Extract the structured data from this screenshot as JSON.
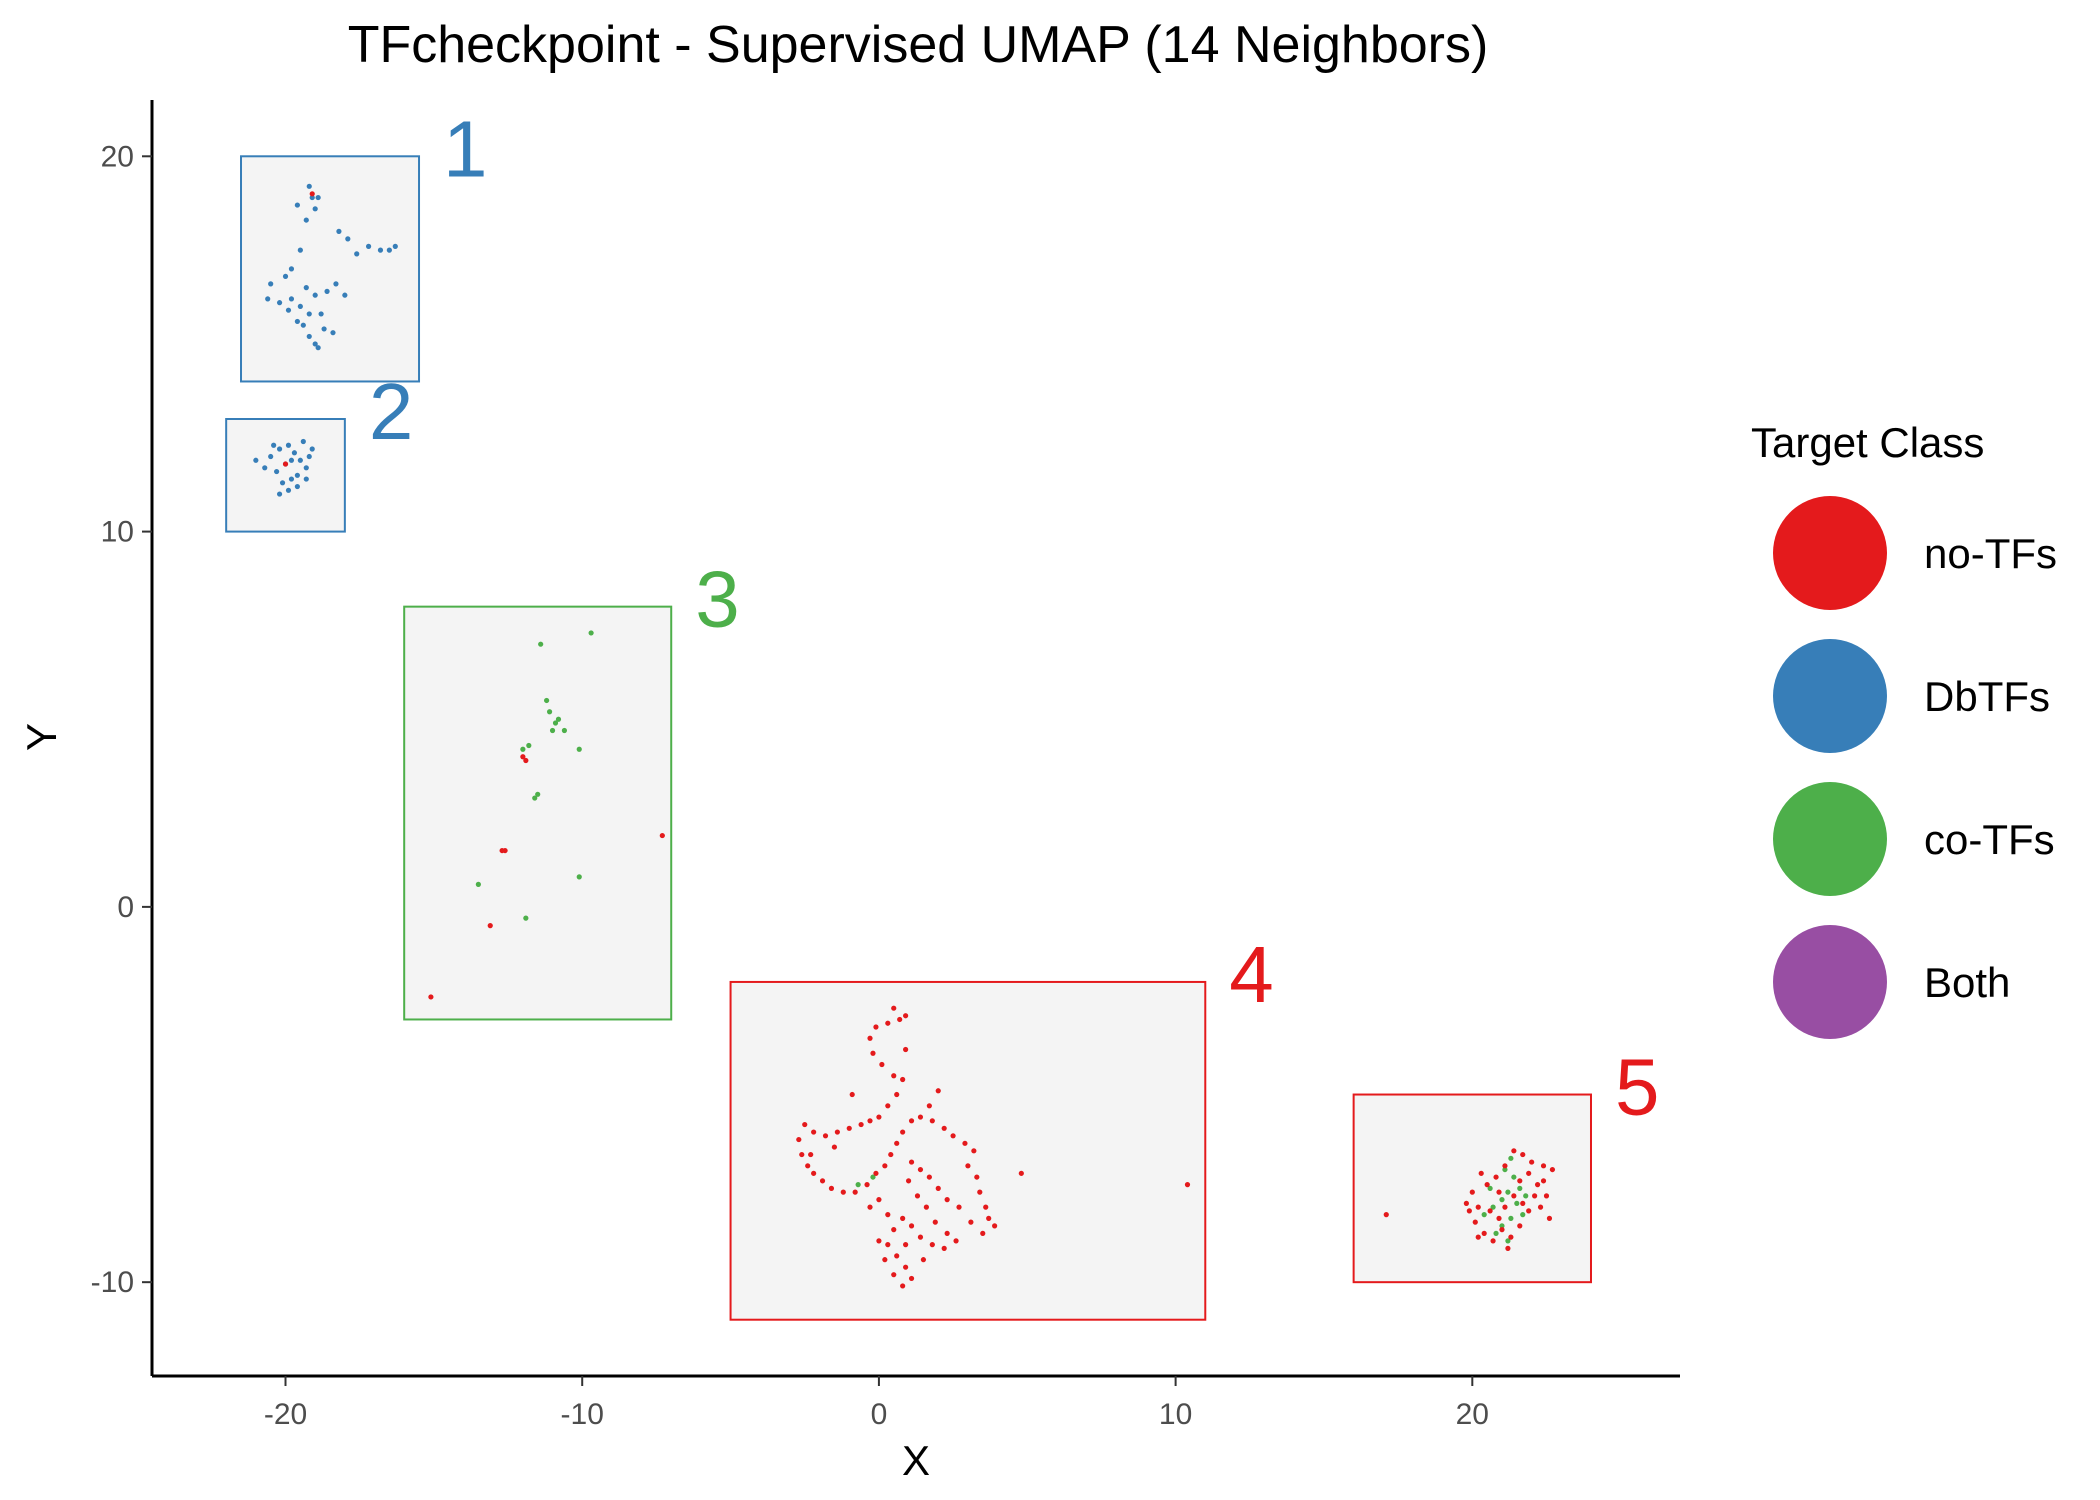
{
  "chart_data": {
    "type": "scatter",
    "title": "TFcheckpoint - Supervised UMAP (14 Neighbors)",
    "xlabel": "X",
    "ylabel": "Y",
    "xlim": [
      -24.5,
      27
    ],
    "ylim": [
      -12.5,
      21.5
    ],
    "x_ticks": [
      -20,
      -10,
      0,
      10,
      20
    ],
    "y_ticks": [
      -10,
      0,
      10,
      20
    ],
    "x_tick_labels": [
      "-20",
      "-10",
      "0",
      "10",
      "20"
    ],
    "y_tick_labels": [
      "-10",
      "0",
      "10",
      "20"
    ],
    "grid": false,
    "legend": {
      "title": "Target Class",
      "position": "right",
      "entries": [
        {
          "label": "no-TFs",
          "color": "#E41A1C"
        },
        {
          "label": "DbTFs",
          "color": "#377EB8"
        },
        {
          "label": "co-TFs",
          "color": "#4DAF4A"
        },
        {
          "label": "Both",
          "color": "#984EA3"
        }
      ]
    },
    "regions": [
      {
        "label": "1",
        "color": "#377EB8",
        "xmin": -21.5,
        "xmax": -15.5,
        "ymin": 14,
        "ymax": 20
      },
      {
        "label": "2",
        "color": "#377EB8",
        "xmin": -22,
        "xmax": -18,
        "ymin": 10,
        "ymax": 13
      },
      {
        "label": "3",
        "color": "#4DAF4A",
        "xmin": -16,
        "xmax": -7,
        "ymin": -3,
        "ymax": 8
      },
      {
        "label": "4",
        "color": "#E41A1C",
        "xmin": -5,
        "xmax": 11,
        "ymin": -11,
        "ymax": -2
      },
      {
        "label": "5",
        "color": "#E41A1C",
        "xmin": 16,
        "xmax": 24,
        "ymin": -10,
        "ymax": -5
      }
    ],
    "series": [
      {
        "name": "DbTFs",
        "color": "#377EB8",
        "points": [
          [
            -19.2,
            19.2
          ],
          [
            -19.1,
            18.9
          ],
          [
            -19.0,
            18.6
          ],
          [
            -19.3,
            18.3
          ],
          [
            -18.9,
            18.9
          ],
          [
            -19.6,
            18.7
          ],
          [
            -18.2,
            18.0
          ],
          [
            -17.9,
            17.8
          ],
          [
            -17.2,
            17.6
          ],
          [
            -16.8,
            17.5
          ],
          [
            -16.5,
            17.5
          ],
          [
            -16.3,
            17.6
          ],
          [
            -17.6,
            17.4
          ],
          [
            -19.5,
            17.5
          ],
          [
            -19.8,
            17.0
          ],
          [
            -20.0,
            16.8
          ],
          [
            -20.5,
            16.6
          ],
          [
            -20.6,
            16.2
          ],
          [
            -20.2,
            16.1
          ],
          [
            -19.8,
            16.2
          ],
          [
            -19.5,
            16.0
          ],
          [
            -19.2,
            15.8
          ],
          [
            -19.0,
            16.3
          ],
          [
            -18.6,
            16.4
          ],
          [
            -18.3,
            16.6
          ],
          [
            -18.0,
            16.3
          ],
          [
            -19.4,
            15.5
          ],
          [
            -19.2,
            15.2
          ],
          [
            -19.0,
            15.0
          ],
          [
            -18.7,
            15.4
          ],
          [
            -18.4,
            15.3
          ],
          [
            -18.9,
            14.9
          ],
          [
            -19.6,
            15.6
          ],
          [
            -19.9,
            15.9
          ],
          [
            -19.3,
            16.5
          ],
          [
            -18.8,
            15.8
          ],
          [
            -21.0,
            11.9
          ],
          [
            -20.5,
            12.0
          ],
          [
            -20.2,
            12.2
          ],
          [
            -19.9,
            12.3
          ],
          [
            -19.7,
            12.1
          ],
          [
            -19.5,
            11.9
          ],
          [
            -19.3,
            11.7
          ],
          [
            -19.6,
            11.5
          ],
          [
            -19.8,
            11.4
          ],
          [
            -20.1,
            11.3
          ],
          [
            -20.3,
            11.6
          ],
          [
            -20.0,
            11.8
          ],
          [
            -19.8,
            11.9
          ],
          [
            -19.4,
            12.4
          ],
          [
            -19.2,
            12.0
          ],
          [
            -19.9,
            11.1
          ],
          [
            -19.6,
            11.2
          ],
          [
            -20.4,
            12.3
          ],
          [
            -20.7,
            11.7
          ],
          [
            -19.3,
            11.4
          ],
          [
            -20.2,
            11.0
          ],
          [
            -19.1,
            12.2
          ]
        ]
      },
      {
        "name": "co-TFs",
        "color": "#4DAF4A",
        "points": [
          [
            -11.4,
            7.0
          ],
          [
            -9.7,
            7.3
          ],
          [
            -11.2,
            5.5
          ],
          [
            -11.1,
            5.2
          ],
          [
            -10.9,
            4.9
          ],
          [
            -10.8,
            5.0
          ],
          [
            -11.0,
            4.7
          ],
          [
            -10.6,
            4.7
          ],
          [
            -11.8,
            4.3
          ],
          [
            -12.0,
            4.2
          ],
          [
            -10.1,
            4.2
          ],
          [
            -11.5,
            3.0
          ],
          [
            -11.6,
            2.9
          ],
          [
            -13.5,
            0.6
          ],
          [
            -10.1,
            0.8
          ],
          [
            -11.9,
            -0.3
          ],
          [
            -0.7,
            -7.4
          ],
          [
            -0.2,
            -7.2
          ],
          [
            20.4,
            -8.2
          ],
          [
            20.7,
            -8.0
          ],
          [
            21.0,
            -7.8
          ],
          [
            21.2,
            -7.6
          ],
          [
            21.5,
            -7.9
          ],
          [
            21.3,
            -8.3
          ],
          [
            21.0,
            -8.5
          ],
          [
            20.8,
            -8.7
          ],
          [
            21.6,
            -7.5
          ],
          [
            21.4,
            -7.2
          ],
          [
            21.1,
            -7.0
          ],
          [
            21.3,
            -6.7
          ],
          [
            21.8,
            -7.7
          ],
          [
            20.6,
            -7.5
          ],
          [
            21.2,
            -8.9
          ],
          [
            21.7,
            -8.2
          ]
        ]
      },
      {
        "name": "no-TFs",
        "color": "#E41A1C",
        "points": [
          [
            -19.1,
            19.0
          ],
          [
            -20.0,
            11.8
          ],
          [
            -12.0,
            4.0
          ],
          [
            -11.9,
            3.9
          ],
          [
            -12.6,
            1.5
          ],
          [
            -12.7,
            1.5
          ],
          [
            -7.3,
            1.9
          ],
          [
            -13.1,
            -0.5
          ],
          [
            -15.1,
            -2.4
          ],
          [
            0.5,
            -2.7
          ],
          [
            0.9,
            -2.9
          ],
          [
            0.7,
            -3.0
          ],
          [
            0.3,
            -3.1
          ],
          [
            -0.1,
            -3.2
          ],
          [
            -0.3,
            -3.5
          ],
          [
            -0.2,
            -3.9
          ],
          [
            0.1,
            -4.2
          ],
          [
            0.5,
            -4.5
          ],
          [
            0.9,
            -3.8
          ],
          [
            0.8,
            -4.6
          ],
          [
            0.6,
            -5.0
          ],
          [
            0.3,
            -5.3
          ],
          [
            0.0,
            -5.6
          ],
          [
            -0.3,
            -5.7
          ],
          [
            -0.6,
            -5.8
          ],
          [
            -1.0,
            -5.9
          ],
          [
            -1.4,
            -6.0
          ],
          [
            -1.8,
            -6.1
          ],
          [
            -2.2,
            -6.0
          ],
          [
            -2.5,
            -5.8
          ],
          [
            -2.7,
            -6.2
          ],
          [
            -2.6,
            -6.6
          ],
          [
            -2.4,
            -6.9
          ],
          [
            -2.2,
            -7.1
          ],
          [
            -1.9,
            -7.3
          ],
          [
            -1.6,
            -7.5
          ],
          [
            -1.2,
            -7.6
          ],
          [
            -0.8,
            -7.6
          ],
          [
            -0.4,
            -7.4
          ],
          [
            -0.1,
            -7.1
          ],
          [
            0.2,
            -6.9
          ],
          [
            0.4,
            -6.6
          ],
          [
            0.6,
            -6.3
          ],
          [
            0.8,
            -6.0
          ],
          [
            1.1,
            -5.7
          ],
          [
            1.4,
            -5.6
          ],
          [
            1.8,
            -5.7
          ],
          [
            2.2,
            -5.9
          ],
          [
            2.5,
            -6.1
          ],
          [
            2.9,
            -6.3
          ],
          [
            3.2,
            -6.5
          ],
          [
            3.0,
            -6.9
          ],
          [
            3.3,
            -7.2
          ],
          [
            3.4,
            -7.6
          ],
          [
            3.6,
            -8.0
          ],
          [
            3.7,
            -8.3
          ],
          [
            3.9,
            -8.5
          ],
          [
            3.5,
            -8.7
          ],
          [
            3.1,
            -8.4
          ],
          [
            2.7,
            -8.0
          ],
          [
            2.3,
            -7.8
          ],
          [
            2.0,
            -7.5
          ],
          [
            1.7,
            -7.2
          ],
          [
            1.4,
            -7.0
          ],
          [
            1.1,
            -6.8
          ],
          [
            1.0,
            -7.3
          ],
          [
            1.3,
            -7.7
          ],
          [
            1.6,
            -8.0
          ],
          [
            1.9,
            -8.4
          ],
          [
            2.3,
            -8.7
          ],
          [
            2.6,
            -8.9
          ],
          [
            2.2,
            -9.1
          ],
          [
            1.8,
            -9.0
          ],
          [
            1.4,
            -8.8
          ],
          [
            1.1,
            -8.5
          ],
          [
            0.8,
            -8.3
          ],
          [
            0.5,
            -8.6
          ],
          [
            0.3,
            -9.0
          ],
          [
            0.6,
            -9.3
          ],
          [
            0.9,
            -9.6
          ],
          [
            1.1,
            -9.9
          ],
          [
            0.8,
            -10.1
          ],
          [
            0.5,
            -9.8
          ],
          [
            0.2,
            -9.4
          ],
          [
            0.0,
            -8.9
          ],
          [
            0.3,
            -8.2
          ],
          [
            0.0,
            -7.8
          ],
          [
            -0.3,
            -8.0
          ],
          [
            0.9,
            -9.0
          ],
          [
            1.5,
            -9.4
          ],
          [
            4.8,
            -7.1
          ],
          [
            10.4,
            -7.4
          ],
          [
            -2.3,
            -6.6
          ],
          [
            -1.5,
            -6.4
          ],
          [
            2.0,
            -4.9
          ],
          [
            1.7,
            -5.3
          ],
          [
            -0.9,
            -5.0
          ],
          [
            17.1,
            -8.2
          ],
          [
            20.0,
            -7.6
          ],
          [
            20.2,
            -8.0
          ],
          [
            20.1,
            -8.4
          ],
          [
            20.4,
            -8.7
          ],
          [
            20.7,
            -8.9
          ],
          [
            20.9,
            -8.3
          ],
          [
            21.1,
            -8.0
          ],
          [
            21.4,
            -7.7
          ],
          [
            21.6,
            -7.3
          ],
          [
            21.9,
            -7.1
          ],
          [
            22.2,
            -7.4
          ],
          [
            22.5,
            -7.7
          ],
          [
            22.7,
            -7.0
          ],
          [
            22.4,
            -6.9
          ],
          [
            22.0,
            -6.8
          ],
          [
            21.7,
            -6.6
          ],
          [
            21.4,
            -6.5
          ],
          [
            21.1,
            -6.9
          ],
          [
            20.8,
            -7.2
          ],
          [
            20.5,
            -7.4
          ],
          [
            20.3,
            -7.1
          ],
          [
            19.9,
            -8.1
          ],
          [
            20.6,
            -8.1
          ],
          [
            21.0,
            -8.6
          ],
          [
            21.3,
            -8.8
          ],
          [
            21.6,
            -8.5
          ],
          [
            21.9,
            -8.1
          ],
          [
            22.3,
            -8.0
          ],
          [
            22.6,
            -8.3
          ],
          [
            19.8,
            -7.9
          ],
          [
            20.9,
            -7.6
          ],
          [
            21.7,
            -7.9
          ],
          [
            22.1,
            -7.7
          ],
          [
            20.2,
            -8.8
          ],
          [
            21.2,
            -9.1
          ],
          [
            22.4,
            -7.3
          ]
        ]
      }
    ]
  }
}
